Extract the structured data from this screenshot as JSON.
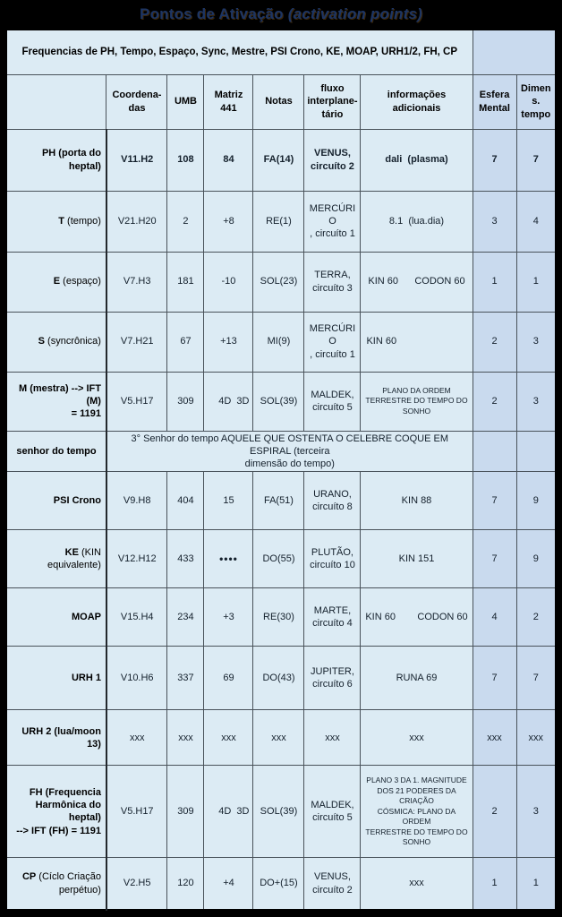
{
  "title": {
    "text": "Pontos de Ativação",
    "italic": "(activation points)"
  },
  "colors": {
    "background": "#000000",
    "cell_light": "#dcebf4",
    "cell_dark": "#c9daee",
    "title_text": "#1d3563"
  },
  "table": {
    "header_banner": "Frequencias de PH, Tempo, Espaço, Sync, Mestre, PSI Crono, KE, MOAP, URH1/2, FH, CP",
    "columns": [
      {
        "key": "label",
        "label": ""
      },
      {
        "key": "coord",
        "label": "Coordena-\ndas"
      },
      {
        "key": "umb",
        "label": "UMB"
      },
      {
        "key": "matriz",
        "label": "Matriz\n441"
      },
      {
        "key": "notas",
        "label": "Notas"
      },
      {
        "key": "fluxo",
        "label": "fluxo\ninterplane-\ntário"
      },
      {
        "key": "info",
        "label": "informações adicionais"
      },
      {
        "key": "esfera",
        "label": "Esfera\nMental"
      },
      {
        "key": "dimens",
        "label": "Dimens.\ntempo"
      }
    ],
    "rows": [
      {
        "key": "ph",
        "label_strong": "PH (porta do heptal)",
        "label_rest": "",
        "cells": [
          "V11.H2",
          "108",
          "84",
          "FA(14)",
          "VENUS,\ncircuíto 2",
          "dali  (plasma)",
          "7",
          "7"
        ]
      },
      {
        "key": "t",
        "label_strong": "T",
        "label_rest": " (tempo)",
        "cells": [
          "V21.H20",
          "2",
          "+8",
          "RE(1)",
          "MERCÚRIO\n, circuíto 1",
          "8.1  (lua.dia)",
          "3",
          "4"
        ]
      },
      {
        "key": "e",
        "label_strong": "E",
        "label_rest": " (espaço)",
        "cells": [
          "V7.H3",
          "181",
          "-10",
          "SOL(23)",
          "TERRA,\ncircuíto 3",
          "KIN 60      CODON 60",
          "1",
          "1"
        ]
      },
      {
        "key": "s",
        "label_strong": "S",
        "label_rest": " (syncrônica)",
        "cells": [
          "V7.H21",
          "67",
          "+13",
          "MI(9)",
          "MERCÚRIO\n, circuíto 1",
          "KIN 60",
          "2",
          "3"
        ]
      },
      {
        "key": "m",
        "label_strong": "M (mestra) --> IFT (M)\n= 1191",
        "label_rest": "",
        "cells": [
          "V5.H17",
          "309",
          "4D  3D",
          "SOL(39)",
          "MALDEK,\ncircuíto 5",
          "PLANO DA ORDEM\nTERRESTRE DO TEMPO DO\nSONHO",
          "2",
          "3"
        ]
      },
      {
        "key": "senhor",
        "label_strong": "senhor do tempo",
        "label_rest": "",
        "span_text": "3° Senhor do tempo AQUELE QUE OSTENTA O CELEBRE COQUE EM ESPIRAL (terceira\ndimensão do tempo)"
      },
      {
        "key": "psi",
        "label_strong": "PSI Crono",
        "label_rest": "",
        "cells": [
          "V9.H8",
          "404",
          "15",
          "FA(51)",
          "URANO,\ncircuíto 8",
          "KIN 88",
          "7",
          "9"
        ]
      },
      {
        "key": "ke",
        "label_strong": "KE",
        "label_rest": " (KIN equivalente)",
        "cells": [
          "V12.H12",
          "433",
          "••••",
          "DO(55)",
          "PLUTÃO,\ncircuíto 10",
          "KIN 151",
          "7",
          "9"
        ]
      },
      {
        "key": "moap",
        "label_strong": "MOAP",
        "label_rest": "",
        "cells": [
          "V15.H4",
          "234",
          "+3",
          "RE(30)",
          "MARTE,\ncircuíto 4",
          "KIN 60        CODON 60",
          "4",
          "2"
        ]
      },
      {
        "key": "urh1",
        "label_strong": "URH 1",
        "label_rest": "",
        "cells": [
          "V10.H6",
          "337",
          "69",
          "DO(43)",
          "JUPITER,\ncircuíto 6",
          "RUNA 69",
          "7",
          "7"
        ]
      },
      {
        "key": "urh2",
        "label_strong": "URH 2 (lua/moon 13)",
        "label_rest": "",
        "cells": [
          "xxx",
          "xxx",
          "xxx",
          "xxx",
          "xxx",
          "xxx",
          "xxx",
          "xxx"
        ]
      },
      {
        "key": "fh",
        "label_strong": "FH (Frequencia\nHarmônica do heptal)\n--> IFT (FH) = 1191",
        "label_rest": "",
        "cells": [
          "V5.H17",
          "309",
          "4D  3D",
          "SOL(39)",
          "MALDEK,\ncircuíto 5",
          "PLANO 3 DA 1. MAGNITUDE\nDOS 21 PODERES DA CRIAÇÃO\nCÓSMICA: PLANO DA ORDEM\nTERRESTRE DO TEMPO DO\nSONHO",
          "2",
          "3"
        ]
      },
      {
        "key": "cp",
        "label_strong": "CP",
        "label_rest": " (Cíclo Criação\nperpétuo)",
        "cells": [
          "V2.H5",
          "120",
          "+4",
          "DO+(15)",
          "VENUS,\ncircuíto 2",
          "xxx",
          "1",
          "1"
        ]
      }
    ]
  }
}
